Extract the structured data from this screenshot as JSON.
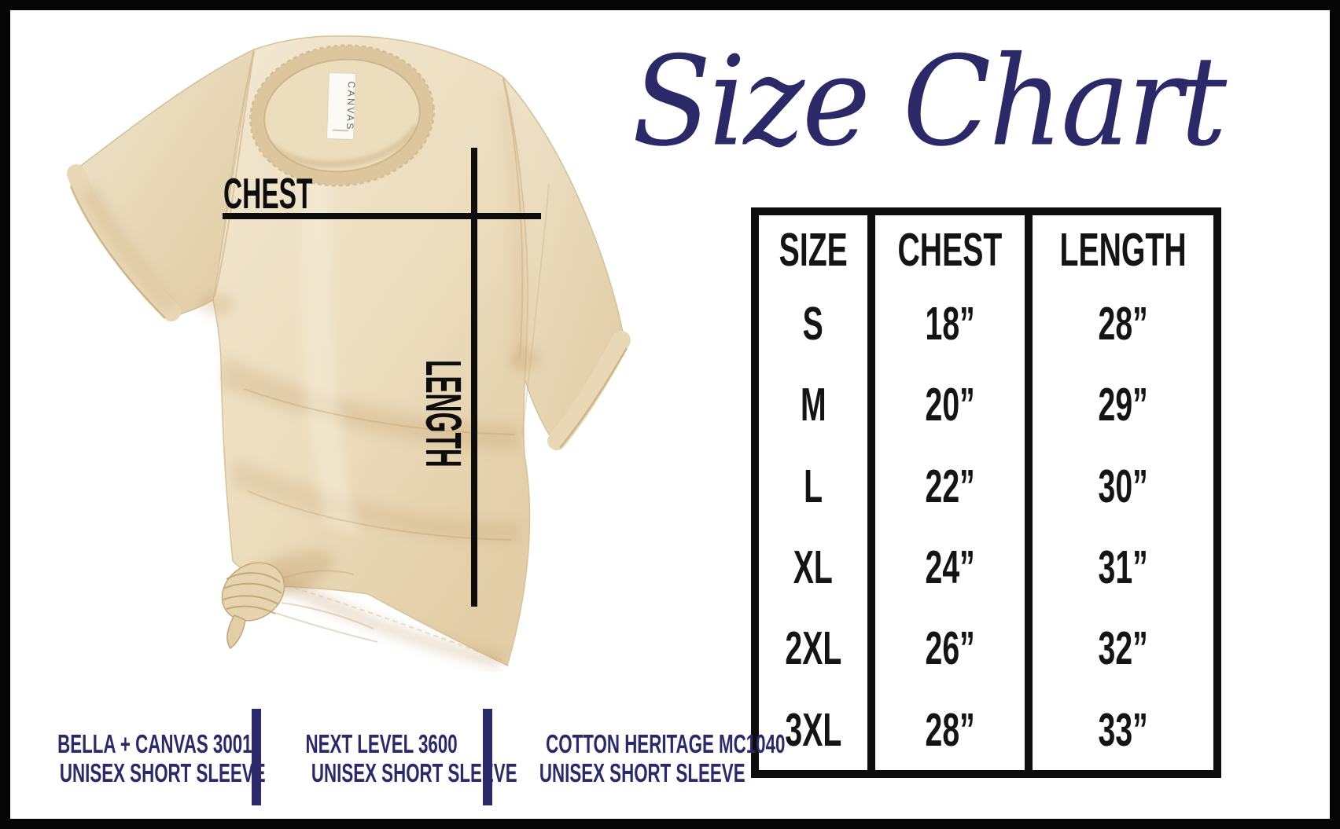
{
  "title": "Size Chart",
  "colors": {
    "accent_navy": "#2b2968",
    "line_black": "#0d0d0d",
    "shirt_tan": "#ece0c4"
  },
  "shirt": {
    "chest_label": "CHEST",
    "length_label": "LENGTH",
    "collar_tag": "CANVAS"
  },
  "size_table": {
    "columns": [
      "SIZE",
      "CHEST",
      "LENGTH"
    ],
    "rows": [
      [
        "S",
        "18”",
        "28”"
      ],
      [
        "M",
        "20”",
        "29”"
      ],
      [
        "L",
        "22”",
        "30”"
      ],
      [
        "XL",
        "24”",
        "31”"
      ],
      [
        "2XL",
        "26”",
        "32”"
      ],
      [
        "3XL",
        "28”",
        "33”"
      ]
    ]
  },
  "brands": [
    {
      "line1": "BELLA + CANVAS 3001",
      "line2": "UNISEX SHORT SLEEVE"
    },
    {
      "line1": "NEXT LEVEL 3600",
      "line2": "UNISEX SHORT SLEEVE"
    },
    {
      "line1": "COTTON HERITAGE MC1040",
      "line2": "UNISEX SHORT SLEEVE"
    }
  ],
  "chart_data": {
    "type": "table",
    "title": "Size Chart",
    "columns": [
      "SIZE",
      "CHEST",
      "LENGTH"
    ],
    "units": "inches",
    "rows": [
      {
        "size": "S",
        "chest": 18,
        "length": 28
      },
      {
        "size": "M",
        "chest": 20,
        "length": 29
      },
      {
        "size": "L",
        "chest": 22,
        "length": 30
      },
      {
        "size": "XL",
        "chest": 24,
        "length": 31
      },
      {
        "size": "2XL",
        "chest": 26,
        "length": 32
      },
      {
        "size": "3XL",
        "chest": 28,
        "length": 33
      }
    ]
  }
}
